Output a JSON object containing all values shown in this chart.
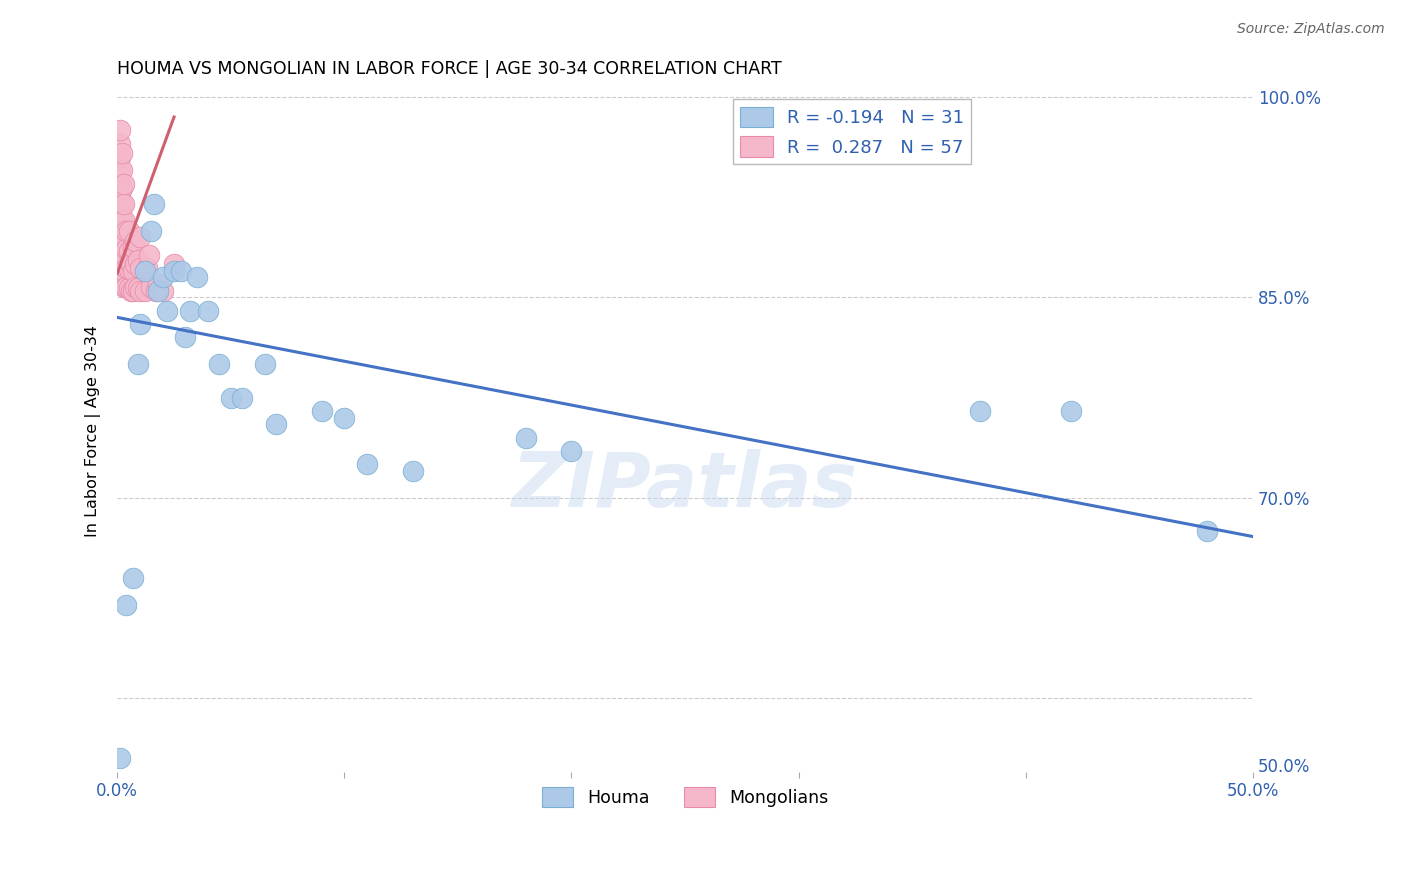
{
  "title": "HOUMA VS MONGOLIAN IN LABOR FORCE | AGE 30-34 CORRELATION CHART",
  "source": "Source: ZipAtlas.com",
  "ylabel": "In Labor Force | Age 30-34",
  "xlim": [
    0.0,
    0.5
  ],
  "ylim": [
    0.495,
    1.005
  ],
  "houma_color": "#adc9e8",
  "mongolian_color": "#f5b8cb",
  "houma_edge_color": "#7aafd4",
  "mongolian_edge_color": "#e88aa8",
  "trend_houma_color": "#4472c4",
  "trend_mongolian_color": "#d06070",
  "legend_r_houma": "-0.194",
  "legend_n_houma": "31",
  "legend_r_mongolian": "0.287",
  "legend_n_mongolian": "57",
  "watermark": "ZIPatlas",
  "houma_x": [
    0.001,
    0.004,
    0.007,
    0.009,
    0.01,
    0.012,
    0.015,
    0.016,
    0.018,
    0.02,
    0.022,
    0.025,
    0.028,
    0.03,
    0.032,
    0.035,
    0.04,
    0.045,
    0.05,
    0.055,
    0.065,
    0.07,
    0.09,
    0.1,
    0.11,
    0.13,
    0.18,
    0.2,
    0.38,
    0.42,
    0.48
  ],
  "houma_y": [
    0.505,
    0.62,
    0.64,
    0.8,
    0.83,
    0.87,
    0.9,
    0.92,
    0.855,
    0.865,
    0.84,
    0.87,
    0.87,
    0.82,
    0.84,
    0.865,
    0.84,
    0.8,
    0.775,
    0.775,
    0.8,
    0.755,
    0.765,
    0.76,
    0.725,
    0.72,
    0.745,
    0.735,
    0.765,
    0.765,
    0.675
  ],
  "mongolian_x": [
    0.001,
    0.001,
    0.001,
    0.001,
    0.001,
    0.001,
    0.001,
    0.001,
    0.001,
    0.001,
    0.001,
    0.001,
    0.002,
    0.002,
    0.002,
    0.002,
    0.002,
    0.002,
    0.002,
    0.002,
    0.002,
    0.003,
    0.003,
    0.003,
    0.003,
    0.003,
    0.003,
    0.003,
    0.004,
    0.004,
    0.004,
    0.004,
    0.005,
    0.005,
    0.005,
    0.005,
    0.006,
    0.006,
    0.007,
    0.007,
    0.007,
    0.008,
    0.008,
    0.008,
    0.009,
    0.009,
    0.01,
    0.01,
    0.01,
    0.012,
    0.013,
    0.014,
    0.015,
    0.017,
    0.018,
    0.02,
    0.025
  ],
  "mongolian_y": [
    0.865,
    0.875,
    0.885,
    0.895,
    0.905,
    0.915,
    0.925,
    0.935,
    0.945,
    0.955,
    0.965,
    0.975,
    0.86,
    0.87,
    0.882,
    0.895,
    0.908,
    0.92,
    0.932,
    0.945,
    0.958,
    0.858,
    0.87,
    0.882,
    0.895,
    0.908,
    0.92,
    0.935,
    0.858,
    0.872,
    0.886,
    0.9,
    0.857,
    0.871,
    0.885,
    0.9,
    0.855,
    0.875,
    0.855,
    0.87,
    0.888,
    0.858,
    0.875,
    0.892,
    0.857,
    0.878,
    0.855,
    0.872,
    0.895,
    0.855,
    0.872,
    0.882,
    0.858,
    0.855,
    0.86,
    0.855,
    0.875
  ],
  "trend_houma_x0": 0.0,
  "trend_houma_x1": 0.5,
  "trend_houma_y0": 0.835,
  "trend_houma_y1": 0.671,
  "trend_mongolian_x0": 0.0,
  "trend_mongolian_x1": 0.025,
  "trend_mongolian_y0": 0.868,
  "trend_mongolian_y1": 0.985
}
